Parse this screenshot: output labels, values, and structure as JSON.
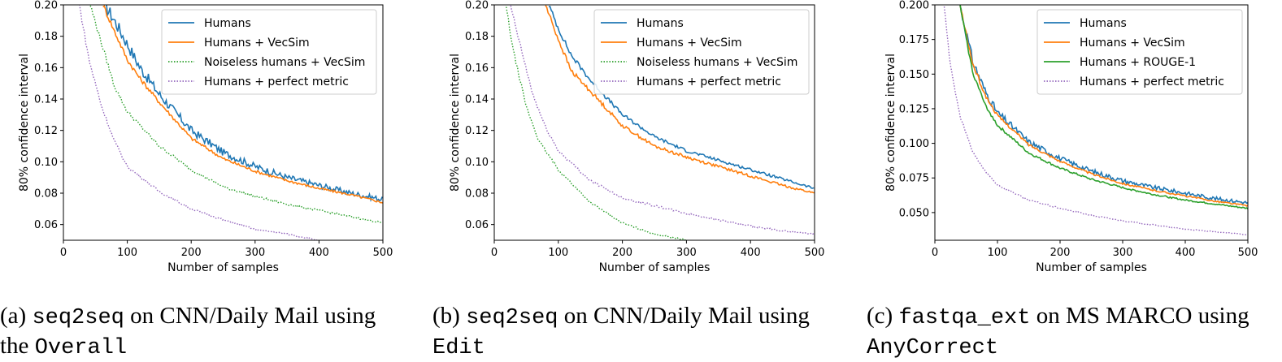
{
  "chart_data": [
    {
      "type": "line",
      "xlabel": "Number of samples",
      "ylabel": "80% confidence interval",
      "xlim": [
        0,
        500
      ],
      "ylim": [
        0.05,
        0.2
      ],
      "xticks": [
        "0",
        "100",
        "200",
        "300",
        "400",
        "500"
      ],
      "yticks": [
        "0.06",
        "0.08",
        "0.10",
        "0.12",
        "0.14",
        "0.16",
        "0.18",
        "0.20"
      ],
      "series": [
        {
          "name": "Humans",
          "color": "#1f77b4",
          "style": "solid",
          "noisy": true,
          "x": [
            65,
            80,
            100,
            120,
            150,
            200,
            250,
            300,
            350,
            400,
            450,
            500
          ],
          "y": [
            0.2,
            0.19,
            0.175,
            0.16,
            0.143,
            0.12,
            0.106,
            0.097,
            0.09,
            0.085,
            0.08,
            0.076
          ]
        },
        {
          "name": "Humans + VecSim",
          "color": "#ff7f0e",
          "style": "solid",
          "x": [
            62,
            80,
            100,
            120,
            150,
            200,
            250,
            300,
            350,
            400,
            450,
            500
          ],
          "y": [
            0.2,
            0.183,
            0.165,
            0.153,
            0.138,
            0.115,
            0.102,
            0.094,
            0.088,
            0.083,
            0.079,
            0.074
          ]
        },
        {
          "name": "Noiseless humans + VecSim",
          "color": "#2ca02c",
          "style": "dotted",
          "x": [
            42,
            60,
            80,
            100,
            150,
            200,
            250,
            300,
            350,
            400,
            450,
            500
          ],
          "y": [
            0.2,
            0.175,
            0.148,
            0.132,
            0.11,
            0.095,
            0.084,
            0.078,
            0.073,
            0.069,
            0.065,
            0.061
          ]
        },
        {
          "name": "Humans + perfect metric",
          "color": "#9467bd",
          "style": "dotted",
          "x": [
            25,
            40,
            60,
            80,
            100,
            150,
            200,
            250,
            300,
            350,
            400
          ],
          "y": [
            0.2,
            0.165,
            0.135,
            0.113,
            0.097,
            0.081,
            0.07,
            0.063,
            0.057,
            0.054,
            0.05
          ]
        }
      ]
    },
    {
      "type": "line",
      "xlabel": "Number of samples",
      "ylabel": "80% confidence interval",
      "xlim": [
        0,
        500
      ],
      "ylim": [
        0.05,
        0.2
      ],
      "xticks": [
        "0",
        "100",
        "200",
        "300",
        "400",
        "500"
      ],
      "yticks": [
        "0.06",
        "0.08",
        "0.10",
        "0.12",
        "0.14",
        "0.16",
        "0.18",
        "0.20"
      ],
      "series": [
        {
          "name": "Humans",
          "color": "#1f77b4",
          "style": "solid",
          "x": [
            85,
            100,
            120,
            150,
            200,
            250,
            300,
            350,
            400,
            450,
            500
          ],
          "y": [
            0.2,
            0.185,
            0.168,
            0.152,
            0.13,
            0.116,
            0.107,
            0.101,
            0.095,
            0.089,
            0.083
          ]
        },
        {
          "name": "Humans + VecSim",
          "color": "#ff7f0e",
          "style": "solid",
          "x": [
            80,
            100,
            120,
            150,
            200,
            250,
            300,
            350,
            400,
            450,
            500
          ],
          "y": [
            0.2,
            0.178,
            0.158,
            0.145,
            0.123,
            0.11,
            0.103,
            0.097,
            0.091,
            0.085,
            0.08
          ]
        },
        {
          "name": "Noiseless humans + VecSim",
          "color": "#2ca02c",
          "style": "dotted",
          "x": [
            18,
            30,
            50,
            70,
            100,
            150,
            200,
            250,
            300
          ],
          "y": [
            0.2,
            0.17,
            0.135,
            0.113,
            0.095,
            0.074,
            0.061,
            0.054,
            0.05
          ]
        },
        {
          "name": "Humans + perfect metric",
          "color": "#9467bd",
          "style": "dotted",
          "x": [
            25,
            40,
            60,
            80,
            100,
            150,
            200,
            250,
            300,
            350,
            400,
            450,
            500
          ],
          "y": [
            0.2,
            0.175,
            0.143,
            0.122,
            0.107,
            0.088,
            0.077,
            0.072,
            0.067,
            0.063,
            0.059,
            0.056,
            0.054
          ]
        }
      ]
    },
    {
      "type": "line",
      "xlabel": "Number of samples",
      "ylabel": "80% confidence interval",
      "xlim": [
        0,
        500
      ],
      "ylim": [
        0.03,
        0.2
      ],
      "xticks": [
        "0",
        "100",
        "200",
        "300",
        "400",
        "500"
      ],
      "yticks": [
        "0.050",
        "0.075",
        "0.100",
        "0.125",
        "0.150",
        "0.175",
        "0.200"
      ],
      "series": [
        {
          "name": "Humans",
          "color": "#1f77b4",
          "style": "solid",
          "noisy": true,
          "x": [
            40,
            60,
            80,
            100,
            150,
            200,
            250,
            300,
            350,
            400,
            450,
            500
          ],
          "y": [
            0.2,
            0.16,
            0.138,
            0.122,
            0.101,
            0.089,
            0.08,
            0.073,
            0.068,
            0.064,
            0.06,
            0.057
          ]
        },
        {
          "name": "Humans + VecSim",
          "color": "#ff7f0e",
          "style": "solid",
          "x": [
            40,
            60,
            80,
            100,
            150,
            200,
            250,
            300,
            350,
            400,
            450,
            500
          ],
          "y": [
            0.2,
            0.158,
            0.135,
            0.12,
            0.099,
            0.087,
            0.078,
            0.071,
            0.066,
            0.062,
            0.058,
            0.055
          ]
        },
        {
          "name": "Humans + ROUGE-1",
          "color": "#2ca02c",
          "style": "solid",
          "x": [
            40,
            60,
            80,
            100,
            150,
            200,
            250,
            300,
            350,
            400,
            450,
            500
          ],
          "y": [
            0.2,
            0.152,
            0.128,
            0.113,
            0.093,
            0.082,
            0.074,
            0.068,
            0.063,
            0.059,
            0.056,
            0.053
          ]
        },
        {
          "name": "Humans + perfect metric",
          "color": "#9467bd",
          "style": "dotted",
          "x": [
            15,
            25,
            40,
            60,
            80,
            100,
            150,
            200,
            250,
            300,
            350,
            400,
            450,
            500
          ],
          "y": [
            0.2,
            0.155,
            0.12,
            0.094,
            0.08,
            0.07,
            0.059,
            0.053,
            0.048,
            0.044,
            0.041,
            0.038,
            0.036,
            0.034
          ]
        }
      ]
    }
  ],
  "captions": [
    {
      "prefix": "(a) ",
      "code": "seq2seq",
      "middle": " on CNN/Daily Mail using",
      "line2_prefix": "the ",
      "code2": "Overall"
    },
    {
      "prefix": "(b) ",
      "code": "seq2seq",
      "middle": " on CNN/Daily Mail using",
      "line2_prefix": "",
      "code2": "Edit"
    },
    {
      "prefix": "(c) ",
      "code": "fastqa_ext",
      "middle": " on MS MARCO using",
      "line2_prefix": "",
      "code2": "AnyCorrect"
    }
  ]
}
